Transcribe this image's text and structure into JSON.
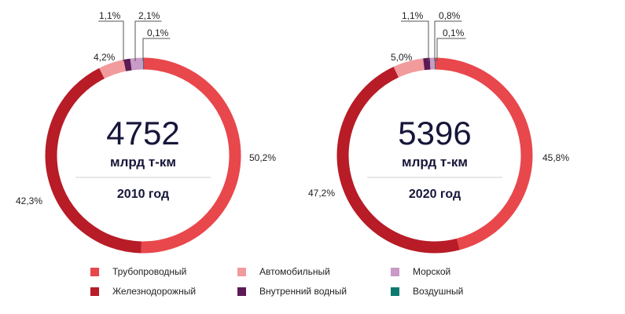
{
  "chart_data": [
    {
      "type": "pie",
      "variant": "donut",
      "year_label": "2010 год",
      "total_value": "4752",
      "total_unit": "млрд т-км",
      "slices": [
        {
          "category": "Трубопроводный",
          "value": 50.2,
          "label": "50,2%"
        },
        {
          "category": "Железнодорожный",
          "value": 42.3,
          "label": "42,3%"
        },
        {
          "category": "Автомобильный",
          "value": 4.2,
          "label": "4,2%"
        },
        {
          "category": "Внутренний водный",
          "value": 1.1,
          "label": "1,1%"
        },
        {
          "category": "Морской",
          "value": 2.1,
          "label": "2,1%"
        },
        {
          "category": "Воздушный",
          "value": 0.1,
          "label": "0,1%"
        }
      ]
    },
    {
      "type": "pie",
      "variant": "donut",
      "year_label": "2020 год",
      "total_value": "5396",
      "total_unit": "млрд т-км",
      "slices": [
        {
          "category": "Трубопроводный",
          "value": 45.8,
          "label": "45,8%"
        },
        {
          "category": "Железнодорожный",
          "value": 47.2,
          "label": "47,2%"
        },
        {
          "category": "Автомобильный",
          "value": 5.0,
          "label": "5,0%"
        },
        {
          "category": "Внутренний водный",
          "value": 1.1,
          "label": "1,1%"
        },
        {
          "category": "Морской",
          "value": 0.8,
          "label": "0,8%"
        },
        {
          "category": "Воздушный",
          "value": 0.1,
          "label": "0,1%"
        }
      ]
    }
  ],
  "legend": [
    {
      "name": "Трубопроводный",
      "color": "#e8474c"
    },
    {
      "name": "Автомобильный",
      "color": "#f29b9c"
    },
    {
      "name": "Морской",
      "color": "#c79ac7"
    },
    {
      "name": "Железнодорожный",
      "color": "#b71c27"
    },
    {
      "name": "Внутренний водный",
      "color": "#5b1a55"
    },
    {
      "name": "Воздушный",
      "color": "#0d7a6d"
    }
  ],
  "legend_position": "bottom"
}
